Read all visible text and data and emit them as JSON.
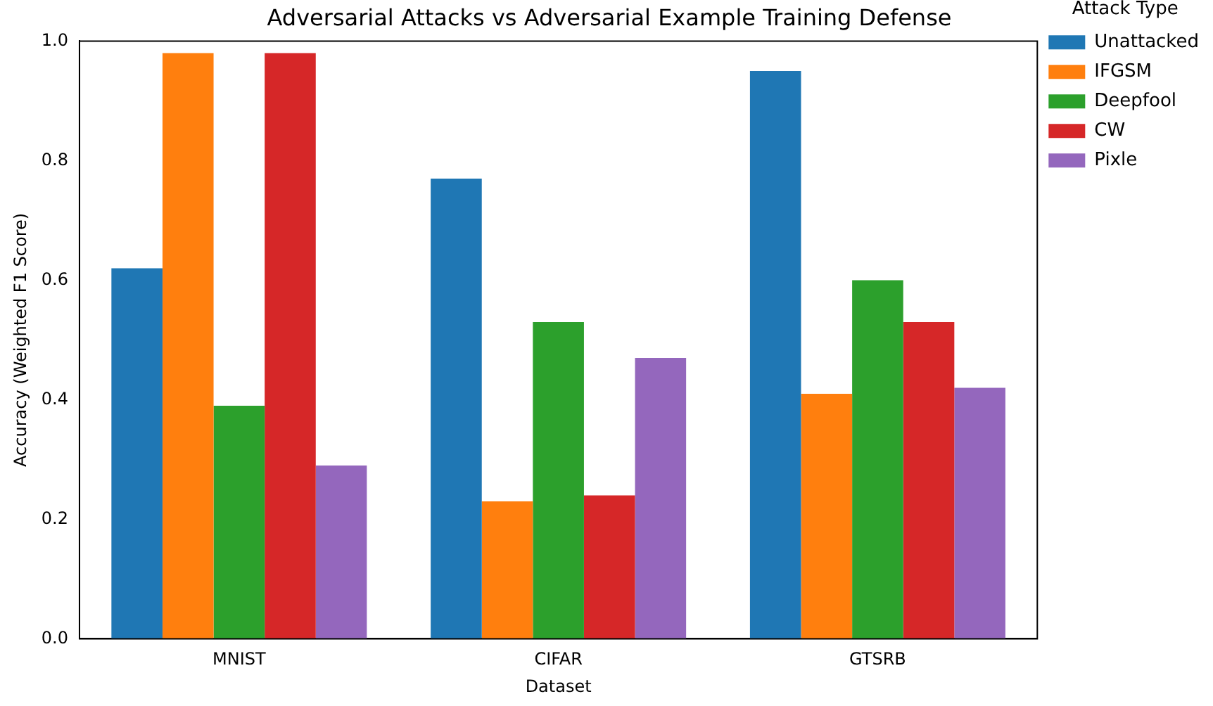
{
  "chart_data": {
    "type": "bar",
    "title": "Adversarial Attacks vs Adversarial Example Training Defense",
    "xlabel": "Dataset",
    "ylabel": "Accuracy (Weighted F1 Score)",
    "legend_title": "Attack Type",
    "legend": "right",
    "grid": false,
    "categories": [
      "MNIST",
      "CIFAR",
      "GTSRB"
    ],
    "series": [
      {
        "name": "Unattacked",
        "color": "#1f77b4",
        "values": [
          0.62,
          0.77,
          0.95
        ]
      },
      {
        "name": "IFGSM",
        "color": "#ff7f0e",
        "values": [
          0.98,
          0.23,
          0.41
        ]
      },
      {
        "name": "Deepfool",
        "color": "#2ca02c",
        "values": [
          0.39,
          0.53,
          0.6
        ]
      },
      {
        "name": "CW",
        "color": "#d62728",
        "values": [
          0.98,
          0.24,
          0.53
        ]
      },
      {
        "name": "Pixle",
        "color": "#9467bd",
        "values": [
          0.29,
          0.47,
          0.42
        ]
      }
    ],
    "ylim": [
      0,
      1
    ],
    "yticks": [
      {
        "value": 0,
        "label": "0.0"
      },
      {
        "value": 0.2,
        "label": "0.2"
      },
      {
        "value": 0.4,
        "label": "0.4"
      },
      {
        "value": 0.6,
        "label": "0.6"
      },
      {
        "value": 0.8,
        "label": "0.8"
      },
      {
        "value": 1,
        "label": "1.0"
      }
    ]
  }
}
